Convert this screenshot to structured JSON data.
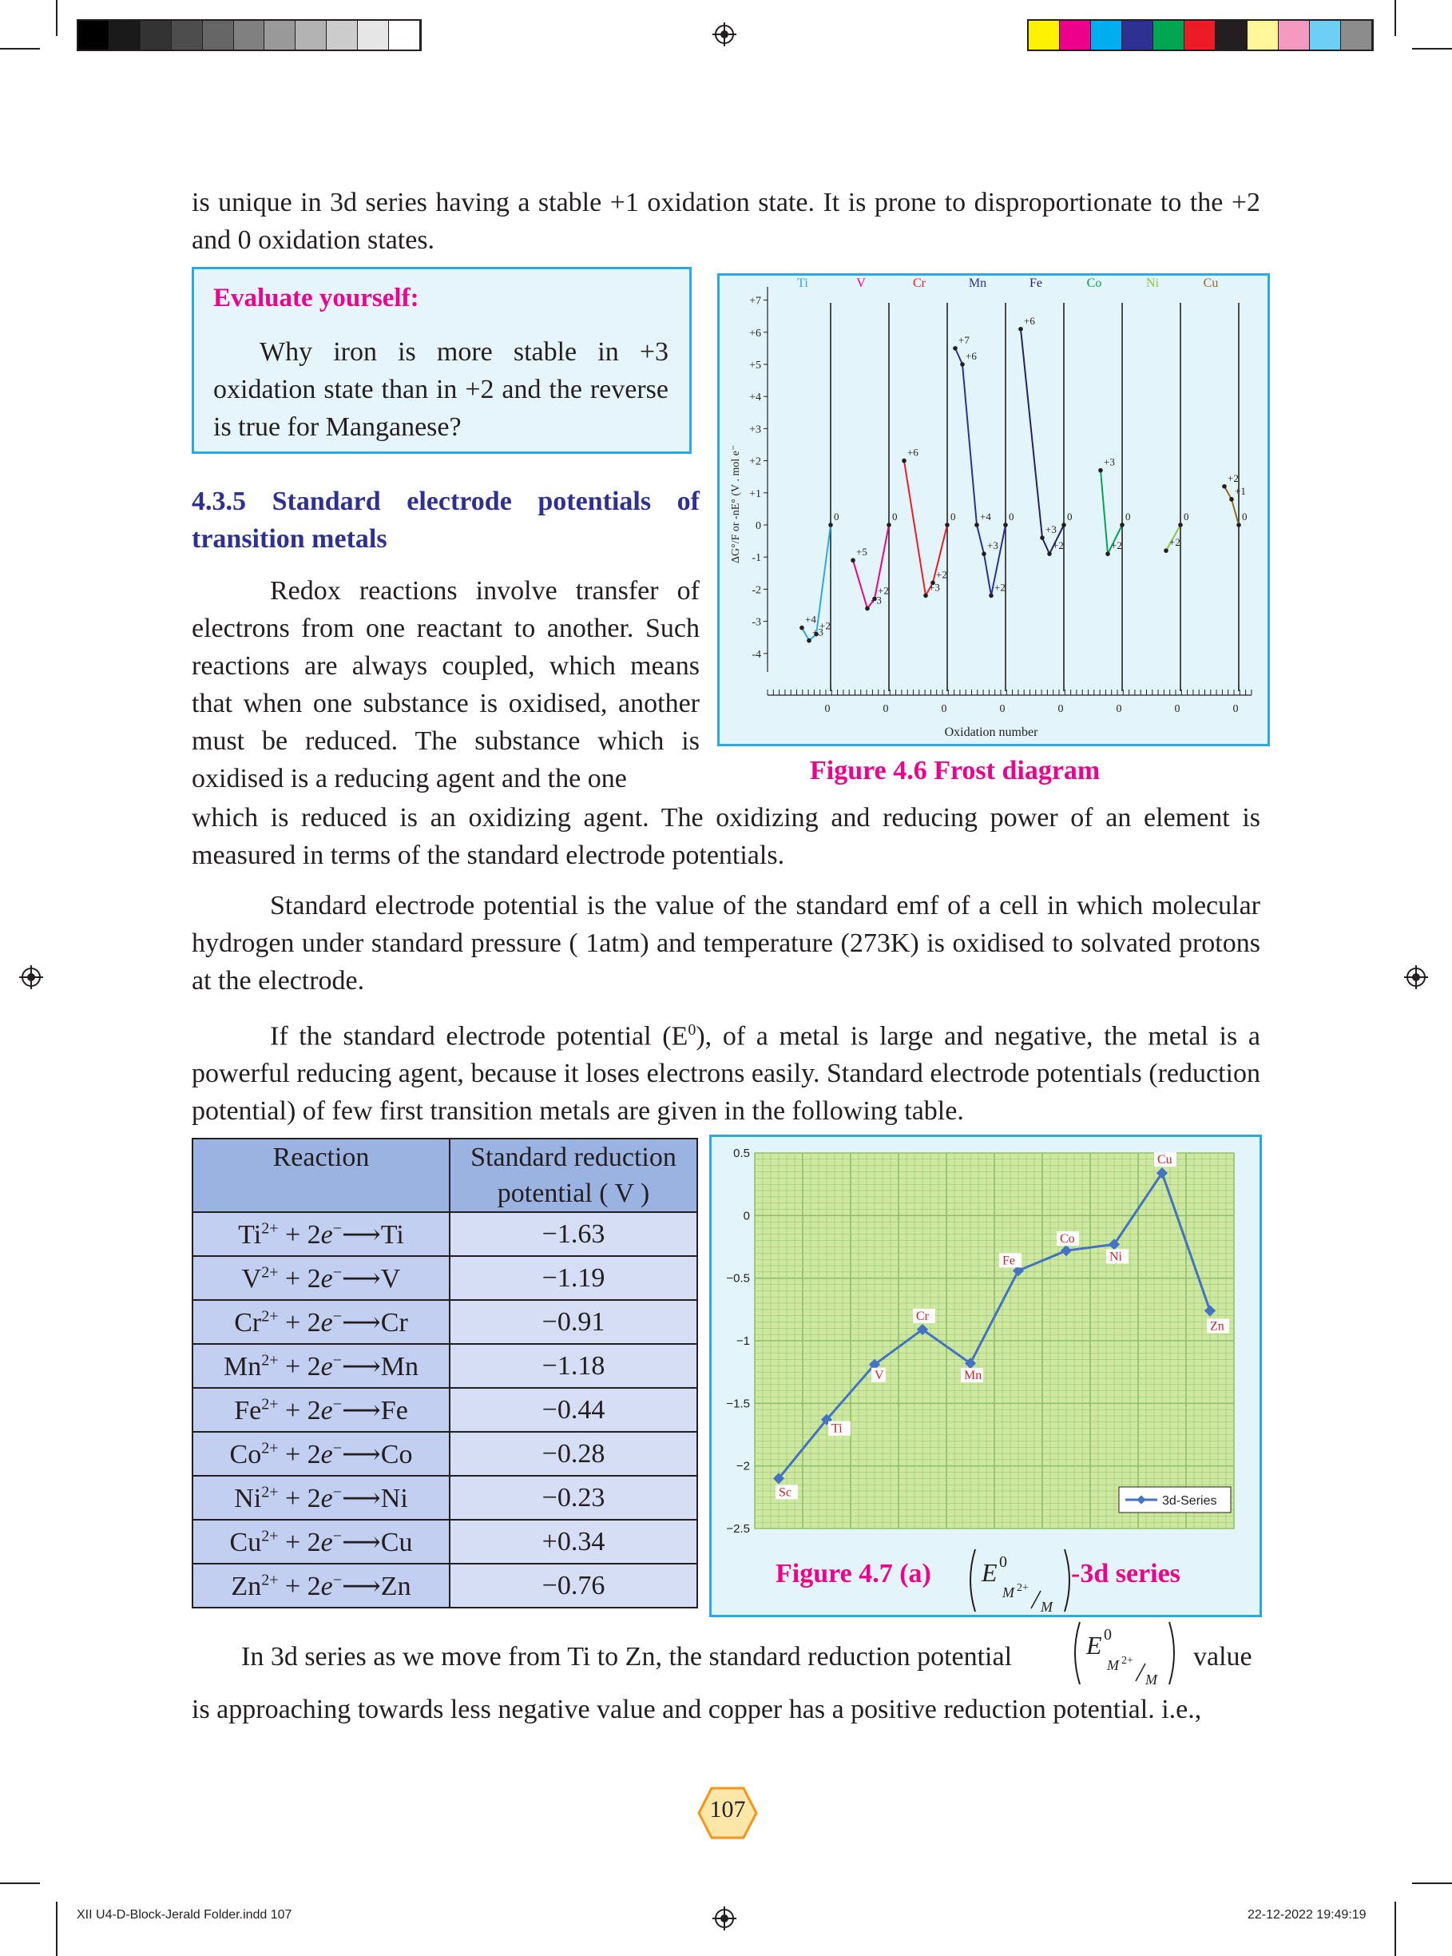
{
  "header": {
    "gray_strip": [
      "#000000",
      "#1a1a1a",
      "#333333",
      "#4d4d4d",
      "#666666",
      "#808080",
      "#999999",
      "#b3b3b3",
      "#cccccc",
      "#e6e6e6",
      "#ffffff"
    ],
    "color_strip": [
      "#fff200",
      "#ec008c",
      "#00aeef",
      "#2e3192",
      "#00a651",
      "#ed1c24",
      "#231f20",
      "#fff799",
      "#f49ac1",
      "#6dcff6",
      "#8c8c8c"
    ]
  },
  "intro": {
    "line": "is unique in 3d series having a stable +1 oxidation state. It is prone to disproportionate to the +2 and 0 oxidation states."
  },
  "evaluate": {
    "title": "Evaluate yourself:",
    "text": "Why iron is more stable in +3 oxidation state than in +2 and the reverse is true for Manganese?"
  },
  "section": {
    "title": "4.3.5 Standard electrode potentials of transition metals",
    "para1_narrow": "Redox reactions involve transfer of electrons from one reactant to another. Such reactions are always coupled, which means that when one substance is oxidised, another must be reduced. The substance which is oxidised is a reducing agent and the one",
    "para1_wide": "which is reduced is an oxidizing agent. The oxidizing and reducing power of an element is measured in terms of the standard electrode potentials.",
    "para2": "Standard electrode potential is the value of the standard emf of a cell in which molecular hydrogen under standard pressure ( 1atm) and temperature (273K) is oxidised to solvated protons at the electrode.",
    "para3_a": "If the standard electrode potential (E",
    "para3_sup": "0",
    "para3_b": "), of a metal is large and negative, the metal is a powerful reducing agent, because it loses electrons easily. Standard electrode potentials (reduction potential) of few first transition metals are given in the following table.",
    "para4_a": "In 3d series as we move from Ti to Zn,  the standard reduction potential",
    "para4_b": "value",
    "para5": "is approaching towards less negative value and copper has a positive reduction potential. i.e.,"
  },
  "frost": {
    "caption": "Figure 4.6 Frost diagram",
    "ylabel": "ΔG°/F or -nE° (V . mol e⁻",
    "xlabel": "Oxidation number",
    "chart_data": {
      "type": "line",
      "title": "Figure 4.6 Frost diagram",
      "xlabel": "Oxidation number",
      "ylabel": "ΔG°/F or -nE° (V . mol e⁻",
      "yticks": [
        "+7",
        "+6",
        "+5",
        "+4",
        "+3",
        "+2",
        "+1",
        "0",
        "-1",
        "-2",
        "-3",
        "-4"
      ],
      "ylim": [
        -4,
        7
      ],
      "panel_zero_labels": [
        "0",
        "0",
        "0",
        "0",
        "0",
        "0",
        "0",
        "0"
      ],
      "series": [
        {
          "name": "Ti",
          "color": "#29abe2",
          "points": [
            [
              "+4",
              -3.2,
              "+4"
            ],
            [
              "+3",
              -3.6,
              "+3"
            ],
            [
              "+2",
              -3.4,
              "+2"
            ],
            [
              "0",
              0,
              "0"
            ]
          ]
        },
        {
          "name": "V",
          "color": "#ec008c",
          "points": [
            [
              "+5",
              -1.1,
              "+5"
            ],
            [
              "+3",
              -2.6,
              "+3"
            ],
            [
              "+2",
              -2.3,
              "+2"
            ],
            [
              "0",
              0,
              "0"
            ]
          ]
        },
        {
          "name": "Cr",
          "color": "#ed1c24",
          "points": [
            [
              "+6",
              2.0,
              "+6"
            ],
            [
              "+3",
              -2.2,
              "+3"
            ],
            [
              "+2",
              -1.8,
              "+2"
            ],
            [
              "0",
              0,
              "0"
            ]
          ]
        },
        {
          "name": "Mn",
          "color": "#2e3192",
          "points": [
            [
              "+7",
              5.5,
              "+7"
            ],
            [
              "+6",
              5.0,
              "+6"
            ],
            [
              "+4",
              0,
              "+4"
            ],
            [
              "+3",
              -0.9,
              "+3"
            ],
            [
              "+2",
              -2.2,
              "+2"
            ],
            [
              "0",
              0,
              "0"
            ]
          ]
        },
        {
          "name": "Fe",
          "color": "#262262",
          "points": [
            [
              "+6",
              6.1,
              "+6"
            ],
            [
              "+3",
              -0.4,
              "+3"
            ],
            [
              "+2",
              -0.9,
              "+2"
            ],
            [
              "0",
              0,
              "0"
            ]
          ]
        },
        {
          "name": "Co",
          "color": "#00a651",
          "points": [
            [
              "+3",
              1.7,
              "+3"
            ],
            [
              "+2",
              -0.9,
              "+2"
            ],
            [
              "0",
              0,
              "0"
            ]
          ]
        },
        {
          "name": "Ni",
          "color": "#8dc63f",
          "points": [
            [
              "+2",
              -0.8,
              "+2"
            ],
            [
              "0",
              0,
              "0"
            ]
          ]
        },
        {
          "name": "Cu",
          "color": "#8c6d1f",
          "points": [
            [
              "+2",
              1.2,
              "+2"
            ],
            [
              "+1",
              0.8,
              "+1"
            ],
            [
              "0",
              0,
              "0"
            ]
          ]
        }
      ]
    }
  },
  "table": {
    "header_reaction": "Reaction",
    "header_potential": "Standard reduction potential ( V )",
    "rows": [
      {
        "ion": "Ti",
        "charge": "2+",
        "e": "2e",
        "metal": "Ti",
        "value": "−1.63"
      },
      {
        "ion": "V",
        "charge": "2+",
        "e": "2e",
        "metal": "V",
        "value": "−1.19"
      },
      {
        "ion": "Cr",
        "charge": "2+",
        "e": "2e",
        "metal": "Cr",
        "value": "−0.91"
      },
      {
        "ion": "Mn",
        "charge": "2+",
        "e": "2e",
        "metal": "Mn",
        "value": "−1.18"
      },
      {
        "ion": "Fe",
        "charge": "2+",
        "e": "2e",
        "metal": "Fe",
        "value": "−0.44"
      },
      {
        "ion": "Co",
        "charge": "2+",
        "e": "2e",
        "metal": "Co",
        "value": "−0.28"
      },
      {
        "ion": "Ni",
        "charge": "2+",
        "e": "2e",
        "metal": "Ni",
        "value": "−0.23"
      },
      {
        "ion": "Cu",
        "charge": "2+",
        "e": "2e",
        "metal": "Cu",
        "value": "+0.34"
      },
      {
        "ion": "Zn",
        "charge": "2+",
        "e": "2e",
        "metal": "Zn",
        "value": "−0.76"
      }
    ]
  },
  "series_chart": {
    "caption_a": "Figure 4.7 (a)",
    "caption_b": "-3d series",
    "E_symbol": "E",
    "E_sup": "0",
    "E_sub_top": "M",
    "E_sub_charge": "2+",
    "E_sub_bottom": "M",
    "legend": "3d-Series",
    "chart_data": {
      "type": "line",
      "title": "",
      "categories": [
        "Sc",
        "Ti",
        "V",
        "Cr",
        "Mn",
        "Fe",
        "Co",
        "Ni",
        "Cu",
        "Zn"
      ],
      "series": [
        {
          "name": "3d-Series",
          "color": "#4472c4",
          "values": [
            -2.1,
            -1.63,
            -1.19,
            -0.91,
            -1.18,
            -0.44,
            -0.28,
            -0.23,
            0.34,
            -0.76
          ]
        }
      ],
      "yticks": [
        "0.5",
        "0",
        "−0.5",
        "−1",
        "−1.5",
        "−2",
        "−2.5"
      ],
      "ylim": [
        -2.5,
        0.5
      ],
      "grid": true,
      "legend_position": "bottom-right"
    }
  },
  "page": {
    "number": "107"
  },
  "footer": {
    "file": "XII U4-D-Block-Jerald Folder.indd   107",
    "date": "22-12-2022   19:49:19"
  }
}
